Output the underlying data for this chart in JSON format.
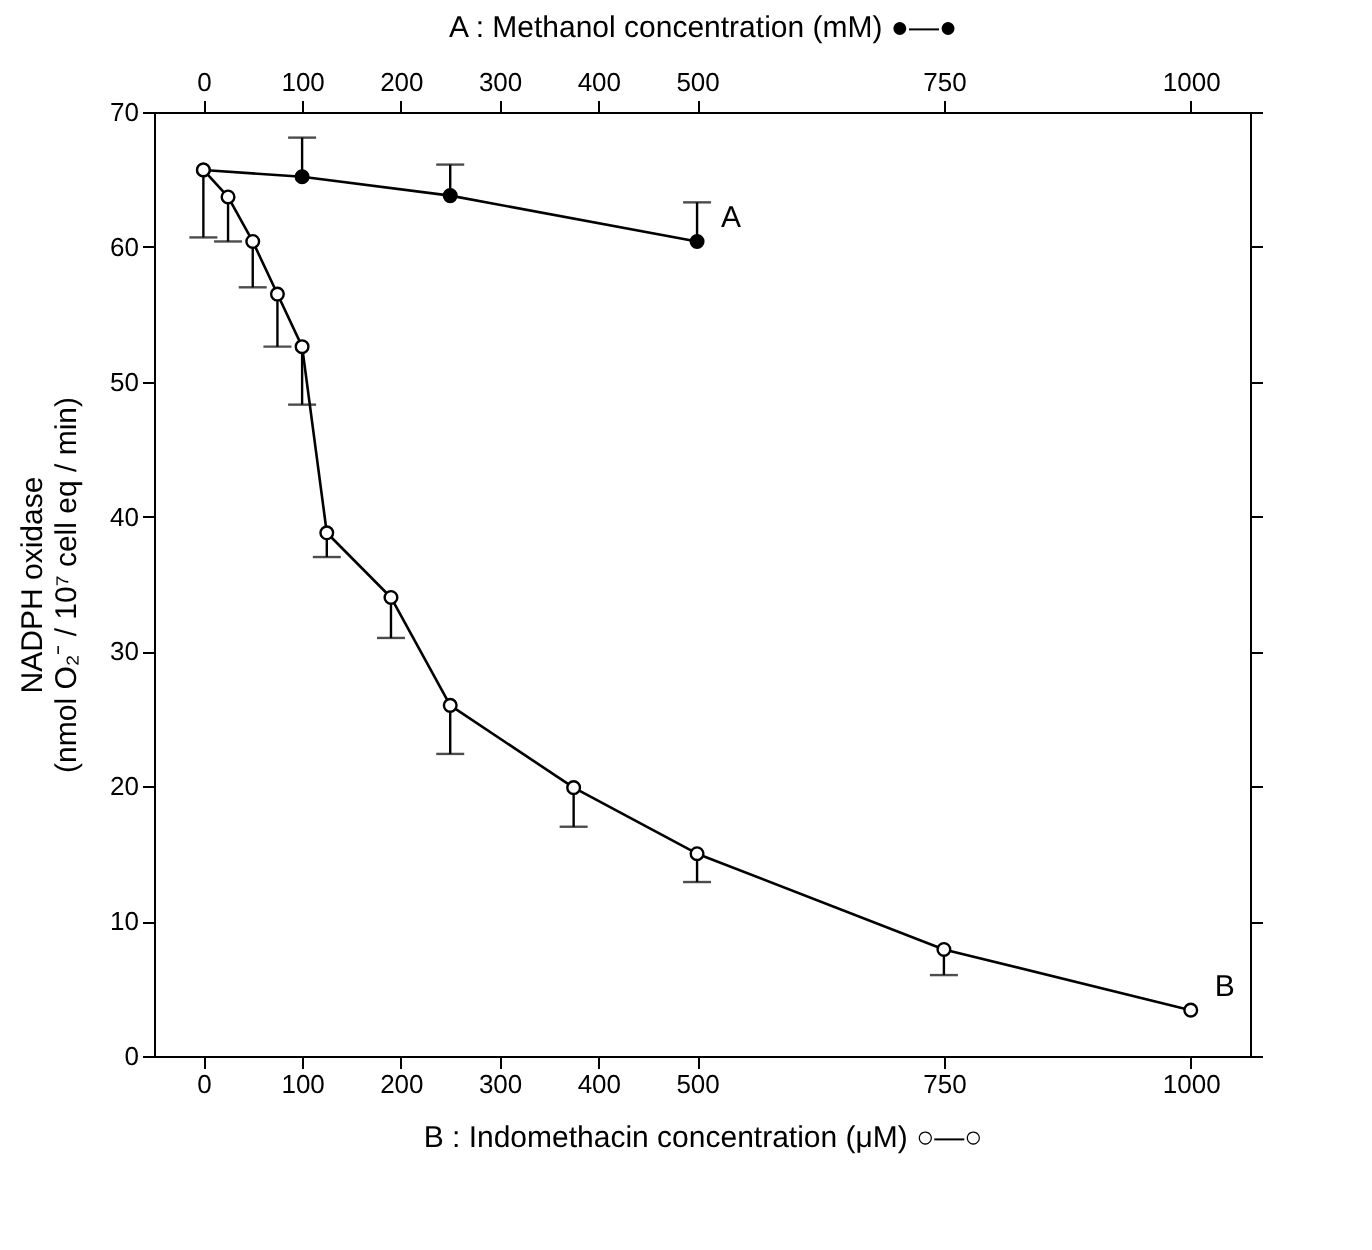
{
  "chart_data": {
    "type": "line",
    "xlabel": "B : Indomethacin concentration (μM) ○—○",
    "x2label": "A : Methanol concentration (mM) ●—●",
    "ylabel": "NADPH oxidase\n(nmol O₂⁻ / 10⁷ cell eq / min)",
    "xlim": [
      -50,
      1060
    ],
    "xticks": [
      0,
      100,
      200,
      300,
      400,
      500,
      750,
      1000
    ],
    "x2lim": [
      -50,
      1060
    ],
    "x2ticks": [
      0,
      100,
      200,
      300,
      400,
      500,
      750,
      1000
    ],
    "ylim": [
      0,
      70
    ],
    "yticks": [
      0,
      10,
      20,
      30,
      40,
      50,
      60,
      70
    ],
    "series": [
      {
        "name": "A",
        "axis": "x2",
        "color": "#000000",
        "x": [
          0,
          100,
          250,
          500
        ],
        "values": [
          65.7,
          65.2,
          63.8,
          60.4
        ],
        "errors": [
          null,
          [
            65.2,
            68.1
          ],
          [
            63.8,
            66.1
          ],
          [
            60.4,
            63.3
          ]
        ]
      },
      {
        "name": "B",
        "color": "#000000",
        "x": [
          0,
          25,
          50,
          75,
          100,
          125,
          190,
          250,
          375,
          500,
          750,
          1000
        ],
        "values": [
          65.7,
          63.7,
          60.4,
          56.5,
          52.6,
          38.8,
          34,
          26,
          19.9,
          15,
          7.9,
          3.4
        ],
        "errors": [
          [
            60.7,
            65.7
          ],
          [
            60.4,
            63.7
          ],
          [
            57,
            60.4
          ],
          [
            52.6,
            56.5
          ],
          [
            48.3,
            52.6
          ],
          [
            37,
            38.8
          ],
          [
            31,
            34
          ],
          [
            22.4,
            26
          ],
          [
            17,
            19.9
          ],
          [
            12.9,
            15
          ],
          [
            6,
            7.9
          ],
          null
        ]
      }
    ],
    "marker": "circle",
    "grid": false
  }
}
